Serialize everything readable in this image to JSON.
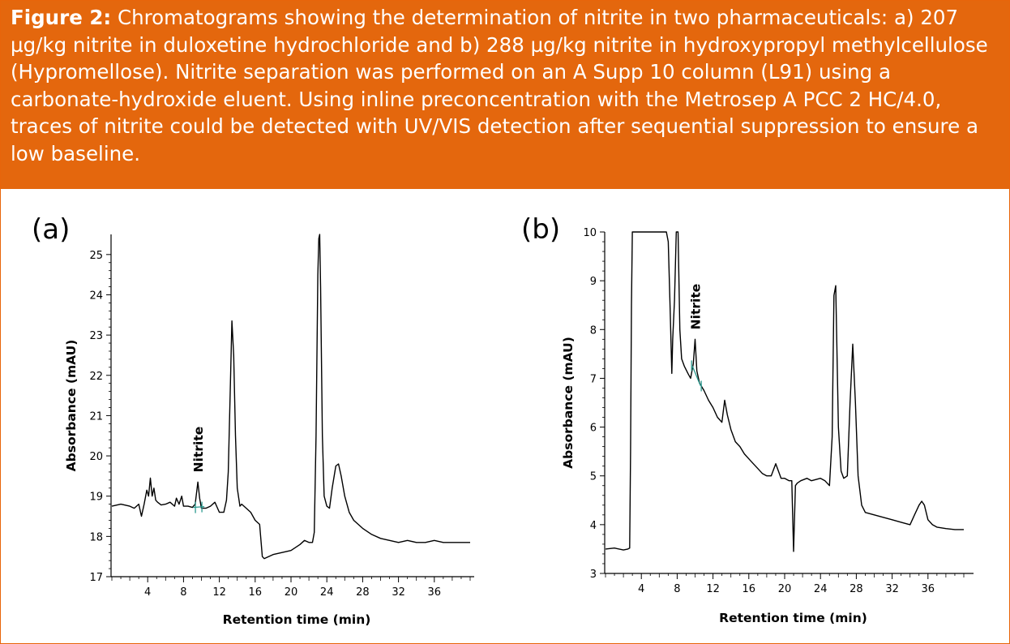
{
  "caption": {
    "label": "Figure 2:",
    "text": " Chromatograms showing the determination of nitrite in two pharmaceuticals: a) 207 µg/kg nitrite in duloxetine hydrochloride and b) 288 µg/kg nitrite in hydroxypropyl methylcellulose (Hypromellose). Nitrite separation was performed on an A Supp 10 column (L91) using a carbonate-hydroxide eluent. Using inline preconcentration with the Metrosep A PCC 2 HC/4.0, traces of nitrite could be detected with UV/VIS detection after sequential suppression to ensure a low baseline."
  },
  "colors": {
    "accent": "#e4670d",
    "trace": "#000000",
    "integration": "#2a9a8f"
  },
  "chart_data": [
    {
      "type": "line",
      "panel_label": "(a)",
      "xlabel": "Retention time (min)",
      "ylabel": "Absorbance (mAU)",
      "xlim": [
        0,
        40
      ],
      "ylim": [
        17,
        25.5
      ],
      "x_ticks": [
        4,
        8,
        12,
        16,
        20,
        24,
        28,
        32,
        36
      ],
      "y_ticks": [
        17,
        18,
        19,
        20,
        21,
        22,
        23,
        24,
        25
      ],
      "annotation": {
        "text": "Nitrite",
        "x": 9.6,
        "y": 19.35
      },
      "series": [
        {
          "name": "duloxetine hydrochloride",
          "x": [
            0,
            1,
            2,
            2.5,
            3,
            3.3,
            3.6,
            3.9,
            4.1,
            4.3,
            4.5,
            4.7,
            4.9,
            5.1,
            5.5,
            6,
            6.5,
            7,
            7.2,
            7.5,
            7.8,
            8,
            8.5,
            9,
            9.3,
            9.6,
            9.8,
            10,
            10.5,
            11,
            11.5,
            11.8,
            12,
            12.5,
            12.8,
            13,
            13.2,
            13.4,
            13.6,
            13.8,
            14,
            14.3,
            14.5,
            15,
            15.5,
            16,
            16.5,
            16.8,
            17,
            17.5,
            18,
            19,
            20,
            21,
            21.5,
            22,
            22.4,
            22.6,
            22.8,
            23,
            23.1,
            23.2,
            23.3,
            23.5,
            23.7,
            24,
            24.3,
            24.6,
            25,
            25.3,
            25.6,
            26,
            26.5,
            27,
            28,
            29,
            30,
            31,
            32,
            33,
            34,
            35,
            36,
            37,
            38,
            39,
            40
          ],
          "values": [
            18.75,
            18.8,
            18.75,
            18.7,
            18.8,
            18.5,
            18.8,
            19.15,
            19.0,
            19.45,
            19.0,
            19.2,
            18.9,
            18.85,
            18.78,
            18.8,
            18.85,
            18.75,
            18.95,
            18.8,
            19.0,
            18.75,
            18.75,
            18.72,
            18.8,
            19.35,
            18.95,
            18.7,
            18.7,
            18.75,
            18.85,
            18.7,
            18.6,
            18.6,
            18.9,
            19.6,
            21.5,
            23.35,
            22.5,
            20.5,
            19.2,
            18.75,
            18.8,
            18.7,
            18.6,
            18.4,
            18.3,
            17.5,
            17.45,
            17.5,
            17.55,
            17.6,
            17.65,
            17.8,
            17.9,
            17.85,
            17.85,
            18.1,
            20.5,
            24.5,
            25.4,
            25.5,
            24.2,
            20.5,
            19.0,
            18.75,
            18.7,
            19.2,
            19.75,
            19.8,
            19.5,
            19.0,
            18.6,
            18.4,
            18.2,
            18.05,
            17.95,
            17.9,
            17.85,
            17.9,
            17.85,
            17.85,
            17.9,
            17.85,
            17.85,
            17.85,
            17.85
          ]
        }
      ]
    },
    {
      "type": "line",
      "panel_label": "(b)",
      "xlabel": "Retention time (min)",
      "ylabel": "Absorbance (mAU)",
      "xlim": [
        0,
        40
      ],
      "ylim": [
        3,
        10
      ],
      "x_ticks": [
        4,
        8,
        12,
        16,
        20,
        24,
        28,
        32,
        36
      ],
      "y_ticks": [
        3,
        4,
        5,
        6,
        7,
        8,
        9,
        10
      ],
      "annotation": {
        "text": "Nitrite",
        "x": 10.0,
        "y": 7.8
      },
      "series": [
        {
          "name": "Hypromellose",
          "x": [
            0,
            1,
            2,
            2.5,
            2.7,
            2.8,
            2.9,
            3.0,
            3.05,
            6.8,
            7.0,
            7.2,
            7.4,
            7.5,
            7.7,
            7.9,
            8.1,
            8.3,
            8.5,
            8.8,
            9.2,
            9.5,
            9.8,
            10.0,
            10.2,
            10.5,
            11,
            11.5,
            12,
            12.5,
            13,
            13.3,
            13.6,
            14,
            14.5,
            15,
            15.5,
            16,
            16.5,
            17,
            17.5,
            18,
            18.5,
            19,
            19.3,
            19.6,
            20,
            20.5,
            20.8,
            21.0,
            21.2,
            21.4,
            21.8,
            22.5,
            23,
            24,
            24.5,
            25,
            25.3,
            25.5,
            25.7,
            26,
            26.3,
            26.6,
            27,
            27.3,
            27.6,
            27.9,
            28.2,
            28.6,
            29,
            30,
            31,
            32,
            33,
            34,
            34.5,
            35,
            35.3,
            35.6,
            36,
            36.5,
            37,
            38,
            39,
            40
          ],
          "values": [
            3.5,
            3.52,
            3.48,
            3.5,
            3.52,
            5.5,
            8.5,
            10,
            10,
            10,
            9.8,
            8.5,
            7.1,
            7.8,
            8.6,
            10,
            10,
            8.0,
            7.4,
            7.25,
            7.1,
            7.0,
            7.3,
            7.8,
            7.15,
            6.9,
            6.75,
            6.55,
            6.4,
            6.2,
            6.1,
            6.55,
            6.25,
            5.95,
            5.7,
            5.6,
            5.45,
            5.35,
            5.25,
            5.15,
            5.05,
            5.0,
            5.0,
            5.25,
            5.1,
            4.95,
            4.95,
            4.9,
            4.9,
            3.45,
            4.8,
            4.85,
            4.9,
            4.95,
            4.9,
            4.95,
            4.9,
            4.8,
            5.8,
            8.7,
            8.9,
            6.0,
            5.1,
            4.95,
            5.0,
            6.5,
            7.7,
            6.5,
            5.0,
            4.4,
            4.25,
            4.2,
            4.15,
            4.1,
            4.05,
            4.0,
            4.2,
            4.4,
            4.48,
            4.4,
            4.1,
            4.0,
            3.95,
            3.92,
            3.9,
            3.9
          ]
        }
      ]
    }
  ]
}
